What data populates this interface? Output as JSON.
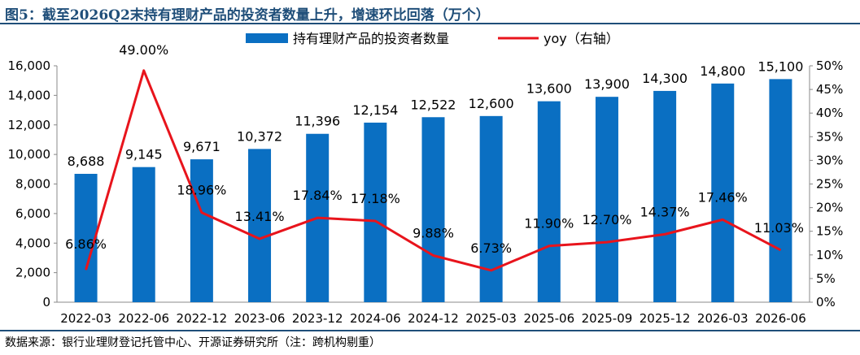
{
  "header": {
    "title": "图5：截至2026Q2末持有理财产品的投资者数量上升，增速环比回落（万个）"
  },
  "footer": {
    "source": "数据来源：银行业理财登记托管中心、开源证券研究所（注：跨机构剔重）"
  },
  "chart_data": {
    "type": "bar",
    "title": "",
    "categories": [
      "2022-03",
      "2022-06",
      "2022-12",
      "2023-06",
      "2023-12",
      "2024-06",
      "2024-12",
      "2025-03",
      "2025-06",
      "2025-09",
      "2025-12",
      "2026-03",
      "2026-06"
    ],
    "series": [
      {
        "name": "持有理财产品的投资者数量",
        "type": "bar",
        "axis": "left",
        "color": "#0a6fc2",
        "values": [
          8688,
          9145,
          9671,
          10372,
          11396,
          12154,
          12522,
          12600,
          13600,
          13900,
          14300,
          14800,
          15100
        ],
        "labels": [
          "8,688",
          "9,145",
          "9,671",
          "10,372",
          "11,396",
          "12,154",
          "12,522",
          "12,600",
          "13,600",
          "13,900",
          "14,300",
          "14,800",
          "15,100"
        ]
      },
      {
        "name": "yoy（右轴）",
        "type": "line",
        "axis": "right",
        "color": "#e8141c",
        "values": [
          6.86,
          49.0,
          18.96,
          13.41,
          17.84,
          17.18,
          9.88,
          6.73,
          11.9,
          12.7,
          14.37,
          17.46,
          11.03
        ],
        "labels": [
          "6.86%",
          "49.00%",
          "18.96%",
          "13.41%",
          "17.84%",
          "17.18%",
          "9.88%",
          "6.73%",
          "11.90%",
          "12.70%",
          "14.37%",
          "17.46%",
          "11.03%"
        ]
      }
    ],
    "y_left": {
      "min": 0,
      "max": 16000,
      "ticks": [
        "0",
        "2,000",
        "4,000",
        "6,000",
        "8,000",
        "10,000",
        "12,000",
        "14,000",
        "16,000"
      ]
    },
    "y_right": {
      "min": 0,
      "max": 50,
      "ticks": [
        "0%",
        "5%",
        "10%",
        "15%",
        "20%",
        "25%",
        "30%",
        "35%",
        "40%",
        "45%",
        "50%"
      ]
    },
    "grid": false,
    "legend": "top-center"
  }
}
